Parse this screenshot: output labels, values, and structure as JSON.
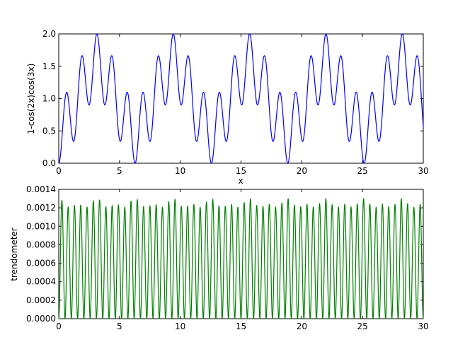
{
  "chart_data": [
    {
      "type": "line",
      "title": "",
      "xlabel": "x",
      "ylabel": "1-cos(2x)cos(3x)",
      "xlim": [
        0,
        30
      ],
      "ylim": [
        0,
        2
      ],
      "x_ticks": [
        "0",
        "5",
        "10",
        "15",
        "20",
        "25",
        "30"
      ],
      "y_ticks": [
        "0.0",
        "0.5",
        "1.0",
        "1.5",
        "2.0"
      ],
      "grid": false,
      "legend": "none",
      "color": "#0000ff",
      "series": [
        {
          "function": "1-cos(2x)cos(3x)",
          "x_range": [
            0,
            30
          ]
        }
      ]
    },
    {
      "type": "line",
      "title": "",
      "xlabel": "",
      "ylabel": "trendometer",
      "xlim": [
        0,
        30
      ],
      "ylim": [
        0,
        0.0014
      ],
      "x_ticks": [
        "0",
        "5",
        "10",
        "15",
        "20",
        "25",
        "30"
      ],
      "y_ticks": [
        "0.0000",
        "0.0002",
        "0.0004",
        "0.0006",
        "0.0008",
        "0.0010",
        "0.0012",
        "0.0014"
      ],
      "grid": false,
      "legend": "none",
      "color": "#008000",
      "series": [
        {
          "peak_min": 0.00118,
          "peak_max": 0.0013,
          "cycles": 58,
          "x_range": [
            0,
            30
          ]
        }
      ]
    }
  ]
}
